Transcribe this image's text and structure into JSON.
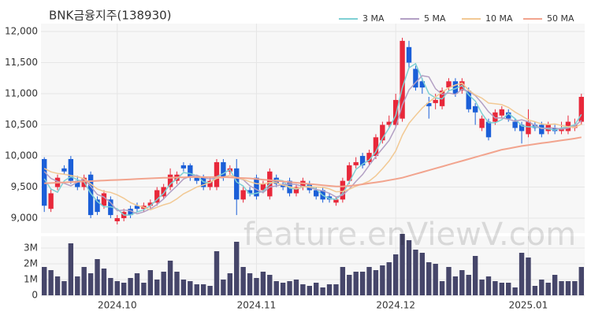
{
  "chart_data": {
    "type": "candlestick",
    "title": "BNK금융지주(138930)",
    "watermark": "feature.enViewV.com",
    "categories": [
      null,
      null,
      null,
      null,
      null,
      null,
      null,
      null,
      null,
      null,
      null,
      "2024.10",
      null,
      null,
      null,
      null,
      null,
      null,
      null,
      null,
      null,
      null,
      null,
      null,
      null,
      null,
      null,
      null,
      null,
      null,
      null,
      null,
      "2024.11",
      null,
      null,
      null,
      null,
      null,
      null,
      null,
      null,
      null,
      null,
      null,
      null,
      null,
      null,
      null,
      null,
      null,
      null,
      null,
      null,
      "2024.12",
      null,
      null,
      null,
      null,
      null,
      null,
      null,
      null,
      null,
      null,
      null,
      null,
      null,
      null,
      null,
      null,
      null,
      null,
      null,
      "2025.01",
      null,
      null,
      null,
      null,
      null,
      null,
      null,
      null
    ],
    "open": [
      9950,
      9150,
      9500,
      9800,
      9950,
      9600,
      9500,
      9700,
      9300,
      9200,
      9300,
      8950,
      9000,
      9150,
      9200,
      9150,
      9200,
      9250,
      9350,
      9500,
      9600,
      9850,
      9850,
      9650,
      9650,
      9500,
      9500,
      9900,
      9750,
      9800,
      9300,
      9450,
      9650,
      9450,
      9350,
      9650,
      9550,
      9600,
      9400,
      9500,
      9550,
      9450,
      9450,
      9350,
      9250,
      9300,
      9600,
      9850,
      10000,
      9900,
      10000,
      10250,
      10500,
      10500,
      10600,
      11750,
      11400,
      11200,
      10850,
      10850,
      10800,
      11100,
      11200,
      11050,
      11050,
      10800,
      10450,
      10550,
      10550,
      10650,
      10700,
      10550,
      10500,
      10350,
      10500,
      10500,
      10400,
      10450,
      10400,
      10400,
      10450,
      10550
    ],
    "high": [
      9980,
      9480,
      9700,
      9850,
      10000,
      9680,
      9700,
      9750,
      9350,
      9450,
      9350,
      9050,
      9150,
      9200,
      9250,
      9250,
      9300,
      9500,
      9550,
      9800,
      9750,
      9900,
      9880,
      9700,
      9700,
      9650,
      9950,
      9950,
      9850,
      9950,
      9500,
      9500,
      9700,
      9600,
      9800,
      9700,
      9600,
      9650,
      9550,
      9650,
      9600,
      9500,
      9500,
      9400,
      9350,
      9650,
      9900,
      9980,
      10050,
      10100,
      10350,
      10550,
      10650,
      11000,
      11900,
      11850,
      11450,
      11250,
      10950,
      11000,
      11100,
      11250,
      11250,
      11250,
      11100,
      10850,
      10650,
      10600,
      10750,
      10800,
      10750,
      10600,
      10550,
      10750,
      10550,
      10550,
      10550,
      10500,
      10550,
      10650,
      10600,
      11000
    ],
    "low": [
      9100,
      9100,
      9450,
      9700,
      9550,
      9450,
      9450,
      9000,
      9050,
      9150,
      9000,
      8900,
      8950,
      9000,
      9100,
      9100,
      9150,
      9200,
      9300,
      9450,
      9550,
      9750,
      9600,
      9550,
      9450,
      9450,
      9450,
      9600,
      9700,
      9050,
      9250,
      9350,
      9300,
      9400,
      9300,
      9500,
      9450,
      9350,
      9350,
      9450,
      9400,
      9300,
      9250,
      9250,
      9200,
      9250,
      9550,
      9800,
      9800,
      9850,
      9950,
      10200,
      10450,
      10450,
      10550,
      11400,
      11050,
      11000,
      10600,
      10750,
      10750,
      11050,
      10950,
      11000,
      10700,
      10500,
      10400,
      10250,
      10500,
      10600,
      10550,
      10400,
      10200,
      10300,
      10400,
      10300,
      10350,
      10350,
      10350,
      10350,
      10400,
      10500
    ],
    "close": [
      9200,
      9400,
      9650,
      9750,
      9600,
      9500,
      9650,
      9050,
      9100,
      9400,
      9050,
      9000,
      9100,
      9050,
      9150,
      9200,
      9250,
      9450,
      9500,
      9700,
      9700,
      9800,
      9650,
      9600,
      9500,
      9600,
      9900,
      9650,
      9800,
      9300,
      9450,
      9400,
      9350,
      9550,
      9750,
      9550,
      9500,
      9400,
      9500,
      9600,
      9450,
      9350,
      9300,
      9300,
      9300,
      9600,
      9850,
      9900,
      9850,
      10050,
      10300,
      10500,
      10550,
      10900,
      11850,
      11500,
      11100,
      11100,
      10800,
      10900,
      11050,
      11200,
      11000,
      11200,
      10750,
      10700,
      10600,
      10300,
      10700,
      10750,
      10600,
      10450,
      10400,
      10550,
      10450,
      10350,
      10500,
      10400,
      10450,
      10550,
      10500,
      10950
    ],
    "volume": [
      1800000,
      1600000,
      1200000,
      900000,
      3300000,
      1200000,
      1800000,
      1400000,
      2300000,
      1700000,
      1100000,
      900000,
      800000,
      1100000,
      1400000,
      800000,
      1600000,
      1000000,
      1500000,
      2200000,
      1500000,
      1000000,
      900000,
      700000,
      700000,
      600000,
      2800000,
      1000000,
      1400000,
      3400000,
      1800000,
      1400000,
      1100000,
      1500000,
      1300000,
      900000,
      800000,
      900000,
      1000000,
      700000,
      600000,
      800000,
      500000,
      700000,
      700000,
      1800000,
      1300000,
      1500000,
      1500000,
      1800000,
      1600000,
      1900000,
      2100000,
      2600000,
      3900000,
      3500000,
      2900000,
      2700000,
      2100000,
      2000000,
      900000,
      1800000,
      1200000,
      1600000,
      1300000,
      2500000,
      1000000,
      1200000,
      900000,
      800000,
      800000,
      500000,
      2700000,
      2400000,
      600000,
      1000000,
      800000,
      1300000,
      900000,
      900000,
      900000,
      1800000
    ],
    "up_color": "#e8283a",
    "down_color": "#1b5fd8",
    "volume_color": "#46466a",
    "series": [
      {
        "name": "3 MA",
        "color": "#7fd0d4",
        "values": [
          9633,
          9467,
          9417,
          9600,
          9667,
          9617,
          9583,
          9400,
          9267,
          9183,
          9183,
          9150,
          9050,
          9050,
          9100,
          9133,
          9200,
          9300,
          9400,
          9550,
          9633,
          9733,
          9717,
          9683,
          9583,
          9567,
          9667,
          9717,
          9783,
          9583,
          9517,
          9383,
          9400,
          9433,
          9550,
          9617,
          9600,
          9483,
          9467,
          9500,
          9517,
          9467,
          9367,
          9317,
          9300,
          9400,
          9583,
          9783,
          9867,
          9933,
          10067,
          10283,
          10450,
          10650,
          11100,
          11417,
          11483,
          11233,
          11000,
          10933,
          10917,
          11050,
          11083,
          11133,
          10983,
          10883,
          10683,
          10533,
          10533,
          10583,
          10683,
          10600,
          10483,
          10467,
          10467,
          10450,
          10433,
          10417,
          10450,
          10467,
          10500,
          10667
        ]
      },
      {
        "name": "5 MA",
        "color": "#b3a0c4",
        "values": [
          9750,
          9640,
          9590,
          9560,
          9520,
          9580,
          9630,
          9510,
          9380,
          9340,
          9250,
          9120,
          9130,
          9120,
          9070,
          9100,
          9150,
          9220,
          9310,
          9420,
          9520,
          9630,
          9670,
          9690,
          9650,
          9630,
          9650,
          9650,
          9690,
          9650,
          9620,
          9520,
          9460,
          9410,
          9500,
          9520,
          9540,
          9550,
          9540,
          9510,
          9490,
          9460,
          9440,
          9400,
          9340,
          9370,
          9470,
          9590,
          9700,
          9850,
          9990,
          10120,
          10250,
          10460,
          10820,
          11060,
          11180,
          11290,
          11270,
          11080,
          10990,
          11010,
          10990,
          11070,
          11040,
          10970,
          10850,
          10710,
          10610,
          10610,
          10590,
          10560,
          10580,
          10550,
          10490,
          10440,
          10450,
          10450,
          10430,
          10450,
          10480,
          10570
        ]
      },
      {
        "name": "10 MA",
        "color": "#f2c994",
        "values": [
          9800,
          9745,
          9720,
          9705,
          9685,
          9665,
          9635,
          9550,
          9470,
          9430,
          9415,
          9375,
          9320,
          9250,
          9205,
          9175,
          9135,
          9175,
          9215,
          9245,
          9310,
          9390,
          9445,
          9500,
          9535,
          9575,
          9640,
          9660,
          9690,
          9650,
          9625,
          9585,
          9555,
          9550,
          9575,
          9570,
          9530,
          9505,
          9475,
          9505,
          9505,
          9500,
          9495,
          9470,
          9425,
          9430,
          9465,
          9515,
          9550,
          9595,
          9680,
          9795,
          9920,
          10080,
          10335,
          10525,
          10650,
          10770,
          10865,
          10950,
          11025,
          11095,
          11140,
          11170,
          11060,
          10980,
          10930,
          10850,
          10840,
          10825,
          10780,
          10705,
          10645,
          10580,
          10550,
          10515,
          10505,
          10515,
          10490,
          10470,
          10460,
          10510
        ]
      },
      {
        "name": "50 MA",
        "color": "#f2a48e",
        "values": [
          9560,
          9565,
          9570,
          9575,
          9580,
          9585,
          9590,
          9595,
          9600,
          9605,
          9610,
          9615,
          9620,
          9625,
          9630,
          9635,
          9640,
          9645,
          9650,
          9650,
          9655,
          9655,
          9660,
          9660,
          9660,
          9660,
          9660,
          9660,
          9655,
          9650,
          9645,
          9640,
          9630,
          9620,
          9610,
          9600,
          9590,
          9580,
          9570,
          9560,
          9550,
          9540,
          9530,
          9520,
          9510,
          9510,
          9520,
          9530,
          9545,
          9560,
          9575,
          9590,
          9610,
          9630,
          9650,
          9680,
          9710,
          9740,
          9770,
          9800,
          9830,
          9860,
          9890,
          9920,
          9950,
          9980,
          10010,
          10040,
          10070,
          10100,
          10120,
          10140,
          10160,
          10175,
          10190,
          10205,
          10220,
          10235,
          10250,
          10265,
          10280,
          10300
        ]
      }
    ],
    "ylim": [
      8760,
      12127
    ],
    "yticks": [
      {
        "value": 9000,
        "label": "9,000"
      },
      {
        "value": 9500,
        "label": "9,500"
      },
      {
        "value": 10000,
        "label": "10,000"
      },
      {
        "value": 10500,
        "label": "10,500"
      },
      {
        "value": 11000,
        "label": "11,000"
      },
      {
        "value": 11500,
        "label": "11,500"
      },
      {
        "value": 12000,
        "label": "12,000"
      }
    ],
    "y2lim": [
      0,
      3750000
    ],
    "y2ticks": [
      0,
      {
        "value": 1000000,
        "label": "1M"
      },
      {
        "value": 2000000,
        "label": "2M"
      },
      {
        "value": 3000000,
        "label": "3M"
      }
    ],
    "grid": true
  }
}
